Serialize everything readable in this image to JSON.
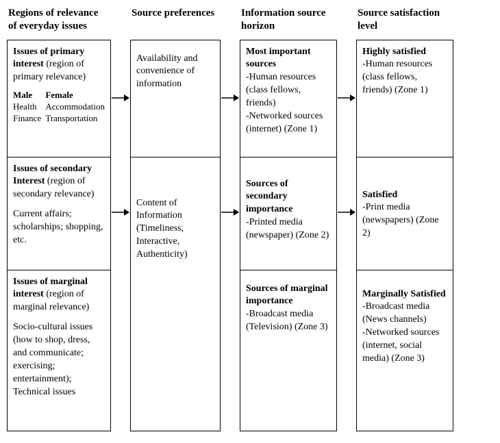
{
  "headers": {
    "c1": "Regions of relevance of everyday issues",
    "c2": "Source preferences",
    "c3": "Information source horizon",
    "c4": "Source satisfaction level"
  },
  "col1": {
    "s1": {
      "title": "Issues of primary interest",
      "paren": " (region of primary relevance)",
      "male_hd": "Male",
      "female_hd": "Female",
      "male_1": "Health",
      "female_1": "Accommodation",
      "male_2": "Finance",
      "female_2": "Transportation"
    },
    "s2": {
      "title": "Issues of secondary Interest",
      "paren": " (region of secondary relevance)",
      "body": "Current affairs; scholarships; shopping, etc."
    },
    "s3": {
      "title": "Issues of marginal interest",
      "paren": " (region of marginal relevance)",
      "body": "Socio-cultural issues (how to shop, dress, and communicate; exercising; entertainment); Technical issues"
    }
  },
  "col2": {
    "s1": {
      "body": "Availability and convenience of information"
    },
    "s2": {
      "body": "Content of Information (Timeliness, Interactive, Authenticity)"
    }
  },
  "col3": {
    "s1": {
      "title": "Most important sources",
      "l1": "-Human resources (class fellows, friends)",
      "l2": "-Networked sources (internet) (Zone 1)"
    },
    "s2": {
      "title": "Sources of secondary importance",
      "l1": "-Printed media (newspaper) (Zone 2)"
    },
    "s3": {
      "title": "Sources of marginal importance",
      "l1": "-Broadcast media (Television) (Zone 3)"
    }
  },
  "col4": {
    "s1": {
      "title": "Highly satisfied",
      "l1": " -Human resources (class fellows, friends) (Zone 1)"
    },
    "s2": {
      "title": "Satisfied",
      "l1": "-Print media (newspapers) (Zone 2)"
    },
    "s3": {
      "title": "Marginally Satisfied",
      "l1": "-Broadcast media (News channels)",
      "l2": "-Networked sources (internet, social media) (Zone 3)"
    }
  },
  "heights": {
    "row1": 170,
    "row2": 165,
    "row3": 235,
    "col2_s1": 170,
    "col2_s2": 400
  },
  "colors": {
    "line": "#000000",
    "bg": "#ffffff"
  }
}
